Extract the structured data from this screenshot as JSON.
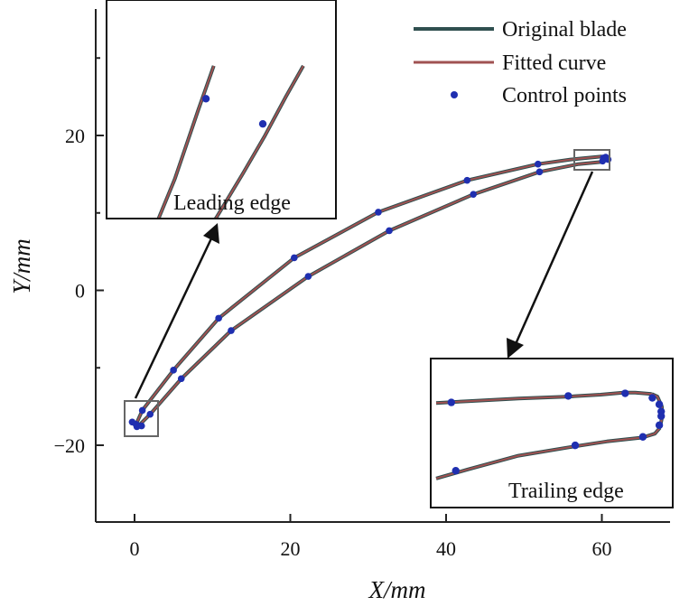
{
  "chart_data": {
    "type": "line",
    "xlabel": "X/mm",
    "ylabel": "Y/mm",
    "xlim": [
      -4,
      70
    ],
    "ylim": [
      -29,
      36
    ],
    "xticks": [
      0,
      20,
      40,
      60
    ],
    "yticks": [
      -20,
      0,
      20
    ],
    "legend": {
      "placement": "top-right"
    },
    "series": [
      {
        "name": "Original blade",
        "color": "#2f4f4f"
      },
      {
        "name": "Fitted curve",
        "color": "#a05252"
      },
      {
        "name": "Control points",
        "color": "#1f2fb0"
      }
    ],
    "curves": {
      "suction_side": [
        [
          0.2,
          -17.3
        ],
        [
          1,
          -15.5
        ],
        [
          5,
          -10.3
        ],
        [
          10.8,
          -3.6
        ],
        [
          20.5,
          4.2
        ],
        [
          31.3,
          10.1
        ],
        [
          42.7,
          14.2
        ],
        [
          51.8,
          16.3
        ],
        [
          56,
          16.9
        ],
        [
          60,
          17.3
        ]
      ],
      "pressure_side": [
        [
          0.2,
          -17.8
        ],
        [
          2,
          -16
        ],
        [
          6,
          -11.4
        ],
        [
          12.4,
          -5.2
        ],
        [
          22.3,
          1.8
        ],
        [
          32.7,
          7.7
        ],
        [
          43.5,
          12.4
        ],
        [
          52,
          15.3
        ],
        [
          57,
          16.3
        ],
        [
          60,
          16.6
        ]
      ]
    },
    "control_points": [
      [
        0.2,
        -17.3
      ],
      [
        1,
        -15.5
      ],
      [
        5,
        -10.3
      ],
      [
        10.8,
        -3.6
      ],
      [
        20.5,
        4.2
      ],
      [
        31.3,
        10.1
      ],
      [
        42.7,
        14.2
      ],
      [
        51.8,
        16.3
      ],
      [
        2,
        -16
      ],
      [
        6,
        -11.4
      ],
      [
        12.4,
        -5.2
      ],
      [
        22.3,
        1.8
      ],
      [
        32.7,
        7.7
      ],
      [
        43.5,
        12.4
      ],
      [
        52,
        15.3
      ],
      [
        0.3,
        -17.6
      ],
      [
        0.9,
        -17.5
      ],
      [
        -0.3,
        -17.0
      ],
      [
        60.2,
        17.1
      ],
      [
        60.8,
        16.9
      ],
      [
        60.5,
        17.2
      ],
      [
        60.1,
        16.7
      ]
    ],
    "insets": [
      {
        "label": "Leading edge",
        "suction_side": [
          [
            -2.1,
            -16.1
          ],
          [
            -1.9,
            -11.9
          ],
          [
            -0.9,
            -6.7
          ],
          [
            5.0,
            7.8
          ],
          [
            11.0,
            25.5
          ],
          [
            15.0,
            37.0
          ]
        ],
        "pressure_side": [
          [
            -1.8,
            -17.7
          ],
          [
            0.0,
            -18.8
          ],
          [
            4.0,
            -17.5
          ],
          [
            9.0,
            -12.0
          ],
          [
            15.8,
            -2.0
          ],
          [
            22.5,
            9.2
          ],
          [
            28.0,
            18.7
          ],
          [
            33.5,
            29.0
          ],
          [
            38.0,
            37.0
          ]
        ],
        "tip": [
          [
            -1.9,
            -11.9
          ],
          [
            -2.1,
            -16.1
          ],
          [
            -2.0,
            -17.2
          ],
          [
            -1.8,
            -17.7
          ]
        ],
        "control_points": [
          [
            13.0,
            28.5
          ],
          [
            27.6,
            22.0
          ],
          [
            -1.4,
            -5.8
          ],
          [
            6.8,
            -12.0
          ],
          [
            -2.8,
            -15.4
          ],
          [
            -2.2,
            -17.1
          ],
          [
            -1.5,
            -17.8
          ],
          [
            -1.0,
            -18.2
          ],
          [
            0.0,
            -18.8
          ],
          [
            1.9,
            -18.2
          ]
        ]
      },
      {
        "label": "Trailing edge",
        "suction_side": [
          [
            -1.0,
            -3.1
          ],
          [
            4.0,
            -2.8
          ],
          [
            12.0,
            -2.4
          ],
          [
            20.0,
            -2.1
          ],
          [
            25.0,
            -1.8
          ],
          [
            28.6,
            -1.5
          ],
          [
            30.5,
            -1.5
          ],
          [
            33.1,
            -1.7
          ]
        ],
        "pressure_side": [
          [
            -1.0,
            -14.7
          ],
          [
            4.0,
            -13.3
          ],
          [
            12.0,
            -11.2
          ],
          [
            20.0,
            -9.9
          ],
          [
            26.0,
            -9.0
          ],
          [
            31.6,
            -8.4
          ],
          [
            33.6,
            -7.8
          ],
          [
            34.4,
            -6.9
          ]
        ],
        "tip": [
          [
            33.1,
            -1.7
          ],
          [
            34.0,
            -2.1
          ],
          [
            34.7,
            -3.6
          ],
          [
            34.8,
            -5.0
          ],
          [
            34.4,
            -6.9
          ]
        ],
        "control_points": [
          [
            1.4,
            -3.0
          ],
          [
            19.9,
            -2.0
          ],
          [
            28.9,
            -1.6
          ],
          [
            33.2,
            -2.3
          ],
          [
            34.3,
            -3.3
          ],
          [
            34.6,
            -4.4
          ],
          [
            34.6,
            -5.1
          ],
          [
            34.3,
            -6.5
          ],
          [
            31.7,
            -8.3
          ],
          [
            21.0,
            -9.6
          ],
          [
            2.1,
            -13.5
          ]
        ]
      }
    ]
  }
}
